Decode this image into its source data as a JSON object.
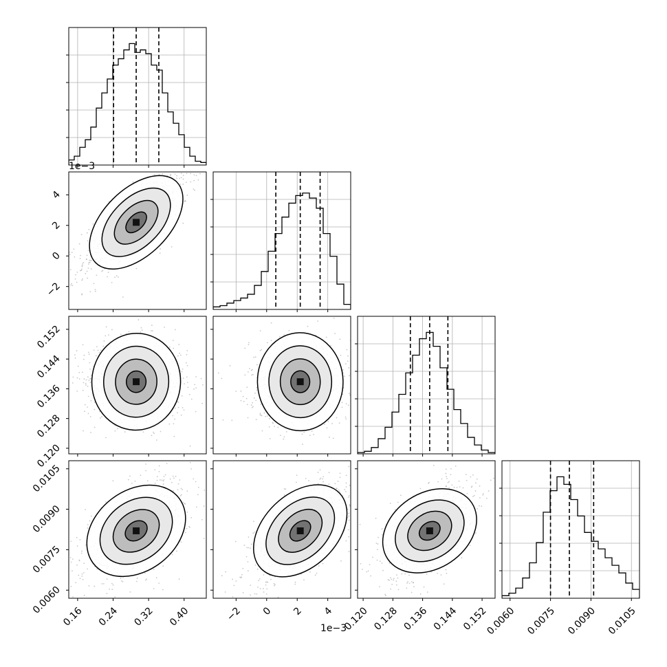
{
  "chart_data": {
    "type": "corner",
    "parameters": [
      {
        "range": [
          0.14,
          0.45
        ],
        "ticks": [
          "0.16",
          "0.24",
          "0.32",
          "0.40"
        ],
        "tick_values": [
          0.16,
          0.24,
          0.32,
          0.4
        ],
        "quantiles": [
          0.241,
          0.292,
          0.343
        ],
        "offset_label": ""
      },
      {
        "range": [
          -3.5,
          5.5
        ],
        "ticks": [
          "−2",
          "0",
          "2",
          "4"
        ],
        "tick_values": [
          -2,
          0,
          2,
          4
        ],
        "quantiles": [
          0.6,
          2.2,
          3.5
        ],
        "offset_label": "1e−3"
      },
      {
        "range": [
          0.1185,
          0.1555
        ],
        "ticks": [
          "0.120",
          "0.128",
          "0.136",
          "0.144",
          "0.152"
        ],
        "tick_values": [
          0.12,
          0.128,
          0.136,
          0.144,
          0.152
        ],
        "quantiles": [
          0.1327,
          0.1379,
          0.1428
        ],
        "offset_label": ""
      },
      {
        "range": [
          0.0057,
          0.0108
        ],
        "ticks": [
          "0.0060",
          "0.0075",
          "0.0090",
          "0.0105"
        ],
        "tick_values": [
          0.006,
          0.0075,
          0.009,
          0.0105
        ],
        "quantiles": [
          0.0075,
          0.0082,
          0.0091
        ],
        "offset_label": ""
      }
    ],
    "histograms": [
      [
        0.04,
        0.07,
        0.14,
        0.2,
        0.3,
        0.45,
        0.57,
        0.68,
        0.79,
        0.84,
        0.91,
        0.96,
        0.89,
        0.91,
        0.88,
        0.79,
        0.75,
        0.57,
        0.42,
        0.33,
        0.24,
        0.14,
        0.07,
        0.03,
        0.02
      ],
      [
        0.02,
        0.03,
        0.05,
        0.07,
        0.09,
        0.12,
        0.19,
        0.3,
        0.46,
        0.6,
        0.73,
        0.84,
        0.9,
        0.92,
        0.88,
        0.8,
        0.6,
        0.42,
        0.2,
        0.04
      ],
      [
        0.01,
        0.02,
        0.05,
        0.12,
        0.21,
        0.33,
        0.47,
        0.64,
        0.78,
        0.91,
        0.96,
        0.85,
        0.68,
        0.51,
        0.35,
        0.24,
        0.13,
        0.07,
        0.03,
        0.01
      ],
      [
        0.02,
        0.04,
        0.08,
        0.16,
        0.28,
        0.44,
        0.68,
        0.85,
        0.96,
        0.9,
        0.78,
        0.65,
        0.52,
        0.45,
        0.39,
        0.32,
        0.26,
        0.2,
        0.12,
        0.07
      ]
    ],
    "correlations": {
      "1_0": 0.75,
      "2_0": -0.05,
      "2_1": 0.02,
      "3_0": 0.55,
      "3_1": 0.65,
      "3_2": 0.5
    },
    "contour_levels": [
      0.9,
      0.6,
      0.3,
      0.1
    ],
    "grid": true,
    "quantile_style": "dashed"
  }
}
